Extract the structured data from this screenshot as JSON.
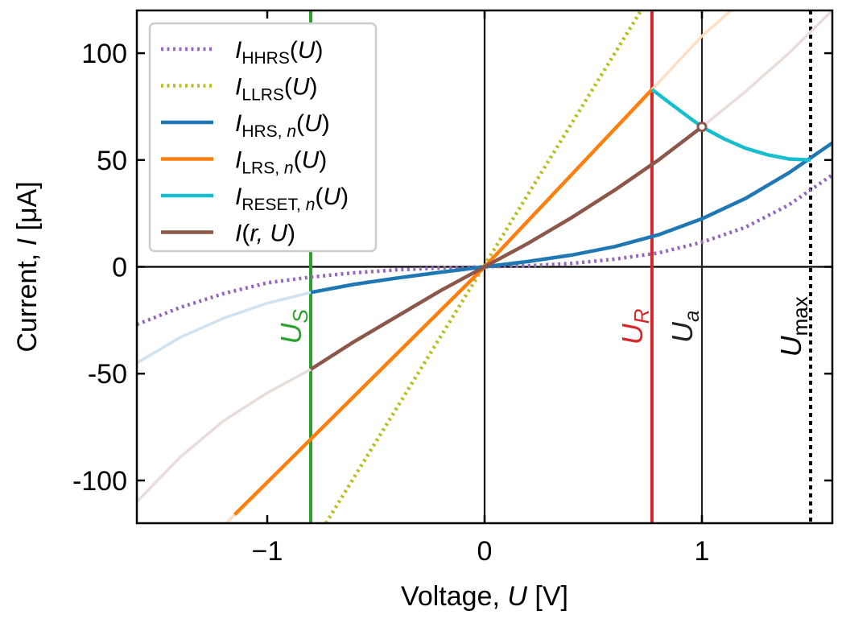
{
  "chart_data": {
    "type": "line",
    "xlabel": {
      "prefix": "Voltage, ",
      "symbol": "U",
      "unit": " [V]"
    },
    "ylabel": {
      "prefix": "Current, ",
      "symbol": "I",
      "unit": " [μA]"
    },
    "xlim": [
      -1.6,
      1.6
    ],
    "ylim": [
      -120,
      120
    ],
    "xticks": [
      {
        "value": -1,
        "label": "−1"
      },
      {
        "value": 0,
        "label": "0"
      },
      {
        "value": 1,
        "label": "1"
      }
    ],
    "yticks": [
      {
        "value": 100,
        "label": "100"
      },
      {
        "value": 50,
        "label": "50"
      },
      {
        "value": 0,
        "label": "0"
      },
      {
        "value": -50,
        "label": "-50"
      },
      {
        "value": -100,
        "label": "-100"
      }
    ],
    "series": [
      {
        "id": "hhrs",
        "label": {
          "main": "I",
          "sub": "HHRS",
          "tail": "(U)"
        },
        "color": "#9467bd",
        "style": "dotted",
        "x": [
          -1.6,
          -1.4,
          -1.2,
          -1.0,
          -0.8,
          -0.6,
          -0.4,
          -0.2,
          0,
          0.2,
          0.4,
          0.6,
          0.8,
          1.0,
          1.2,
          1.4,
          1.6
        ],
        "y": [
          -27,
          -19,
          -12.5,
          -7.5,
          -4.8,
          -2.8,
          -1.4,
          -0.5,
          0,
          0.5,
          1.6,
          3.6,
          6.5,
          11.5,
          18.5,
          29,
          43
        ]
      },
      {
        "id": "llrs",
        "label": {
          "main": "I",
          "sub": "LLRS",
          "tail": "(U)"
        },
        "color": "#bcbd22",
        "style": "dotted",
        "x": [
          -0.73,
          0.72
        ],
        "y": [
          -120,
          120
        ]
      },
      {
        "id": "hrs",
        "label": {
          "main": "I",
          "sub": "HRS, n",
          "tail": "(U)"
        },
        "color": "#1f77b4",
        "style": "solid",
        "x": [
          -1.6,
          -1.4,
          -1.2,
          -1.0,
          -0.8,
          -0.6,
          -0.4,
          -0.2,
          0,
          0.2,
          0.4,
          0.6,
          0.8,
          1.0,
          1.2,
          1.4,
          1.6
        ],
        "y": [
          -45,
          -33,
          -24,
          -17,
          -12,
          -8.2,
          -5.2,
          -2.5,
          0,
          2.5,
          5.5,
          9.5,
          15,
          22.5,
          32,
          44,
          58
        ],
        "solid_range": [
          -0.8,
          1.6
        ],
        "faded_color": "#d0e2f0"
      },
      {
        "id": "lrs",
        "label": {
          "main": "I",
          "sub": "LRS, n",
          "tail": "(U)"
        },
        "color": "#ff7f0e",
        "style": "solid",
        "x": [
          -1.6,
          -1.15,
          0,
          0.77,
          1.0,
          1.6
        ],
        "y": [
          -162,
          -116,
          0,
          83,
          108,
          162
        ],
        "solid_range": [
          -1.15,
          0.77
        ],
        "faded_color": "#ffdfc4"
      },
      {
        "id": "reset",
        "label": {
          "main": "I",
          "sub": "RESET, n",
          "tail": "(U)"
        },
        "color": "#17becf",
        "style": "solid",
        "x": [
          0.77,
          0.9,
          1.0,
          1.1,
          1.2,
          1.3,
          1.4,
          1.5
        ],
        "y": [
          83,
          73,
          65.5,
          60,
          55.5,
          52.5,
          50.5,
          50
        ]
      },
      {
        "id": "ir",
        "label": {
          "main": "I(r, U)"
        },
        "color": "#8c564b",
        "style": "solid",
        "x": [
          -1.6,
          -1.4,
          -1.2,
          -1.0,
          -0.8,
          -0.6,
          -0.4,
          -0.2,
          0,
          0.2,
          0.4,
          0.6,
          0.8,
          1.0,
          1.2,
          1.4,
          1.6
        ],
        "y": [
          -110,
          -89,
          -72,
          -59,
          -48,
          -35,
          -23,
          -11,
          0,
          11,
          23,
          36,
          50,
          65.5,
          82,
          100,
          120
        ],
        "solid_range": [
          -0.8,
          1.0
        ],
        "faded_color": "#e9dcd9"
      }
    ],
    "vlines": [
      {
        "id": "us",
        "x": -0.8,
        "color": "#2ca02c",
        "style": "solid",
        "label": {
          "main": "U",
          "sub": "S",
          "sub_italic": true
        },
        "label_y": -28
      },
      {
        "id": "ur",
        "x": 0.77,
        "color": "#d62728",
        "style": "solid",
        "label": {
          "main": "U",
          "sub": "R",
          "sub_italic": true
        },
        "label_y": -28
      },
      {
        "id": "ua",
        "x": 1.0,
        "color": "#222222",
        "style": "thin",
        "label": {
          "main": "U",
          "sub": "a",
          "sub_italic": true
        },
        "label_y": -28
      },
      {
        "id": "umax",
        "x": 1.5,
        "color": "#000000",
        "style": "dotted",
        "label": {
          "main": "U",
          "sub": "max",
          "sub_italic": false
        },
        "label_y": -28
      }
    ],
    "marker": {
      "x": 1.0,
      "y": 65.5,
      "color": "#8c564b"
    },
    "legend": {
      "position": "top-left"
    }
  }
}
